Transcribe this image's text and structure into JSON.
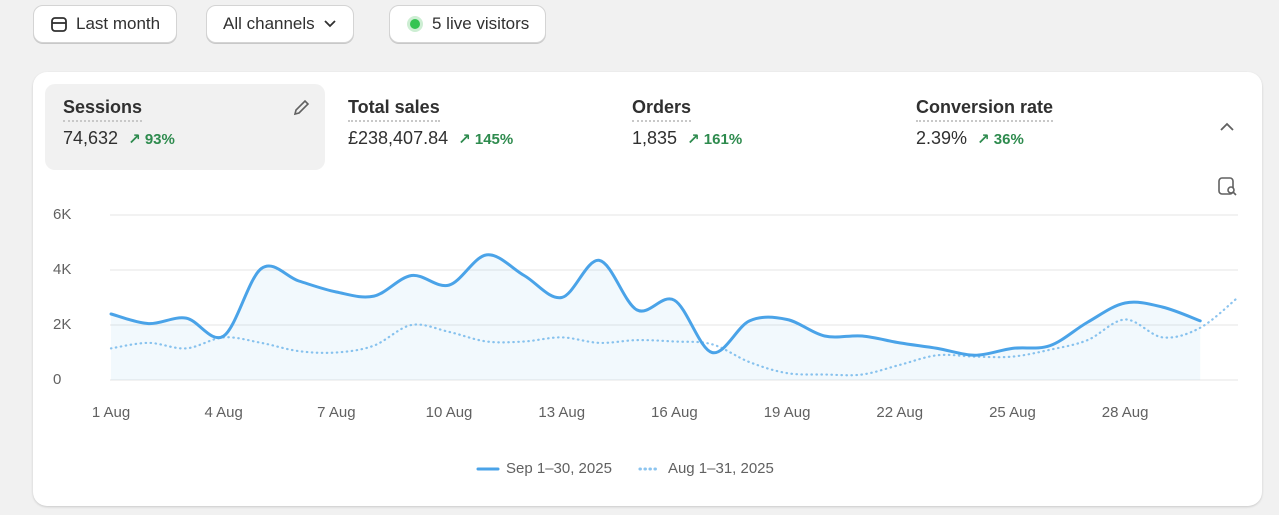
{
  "toolbar": {
    "date_range": "Last month",
    "channels": "All channels",
    "live_visitors": "5 live visitors"
  },
  "metrics": [
    {
      "label": "Sessions",
      "value": "74,632",
      "change": "93%"
    },
    {
      "label": "Total sales",
      "value": "£238,407.84",
      "change": "145%"
    },
    {
      "label": "Orders",
      "value": "1,835",
      "change": "161%"
    },
    {
      "label": "Conversion rate",
      "value": "2.39%",
      "change": "36%"
    }
  ],
  "chart_data": {
    "type": "line",
    "categories": [
      "1 Aug",
      null,
      null,
      "4 Aug",
      null,
      null,
      "7 Aug",
      null,
      null,
      "10 Aug",
      null,
      null,
      "13 Aug",
      null,
      null,
      "16 Aug",
      null,
      null,
      "19 Aug",
      null,
      null,
      "22 Aug",
      null,
      null,
      "25 Aug",
      null,
      null,
      "28 Aug",
      null,
      null,
      null
    ],
    "series": [
      {
        "name": "Sep 1–30, 2025",
        "color": "#4aa3e8",
        "style": "solid",
        "values": [
          2400,
          2050,
          2250,
          1600,
          4050,
          3600,
          3200,
          3050,
          3800,
          3450,
          4550,
          3800,
          3000,
          4350,
          2550,
          2900,
          1000,
          2150,
          2200,
          1600,
          1600,
          1350,
          1150,
          900,
          1150,
          1250,
          2100,
          2800,
          2650,
          2150,
          null
        ]
      },
      {
        "name": "Aug 1–31, 2025",
        "color": "#8cc4ef",
        "style": "dotted",
        "values": [
          1150,
          1350,
          1150,
          1550,
          1350,
          1050,
          1000,
          1250,
          2000,
          1750,
          1400,
          1400,
          1550,
          1350,
          1450,
          1400,
          1300,
          650,
          250,
          200,
          200,
          550,
          900,
          850,
          850,
          1100,
          1450,
          2200,
          1550,
          1900,
          3000
        ]
      }
    ],
    "ylim": [
      0,
      6000
    ],
    "yticks": [
      0,
      {
        "value": 2000,
        "label": "2K"
      },
      {
        "value": 4000,
        "label": "4K"
      },
      {
        "value": 6000,
        "label": "6K"
      }
    ],
    "grid": true
  }
}
